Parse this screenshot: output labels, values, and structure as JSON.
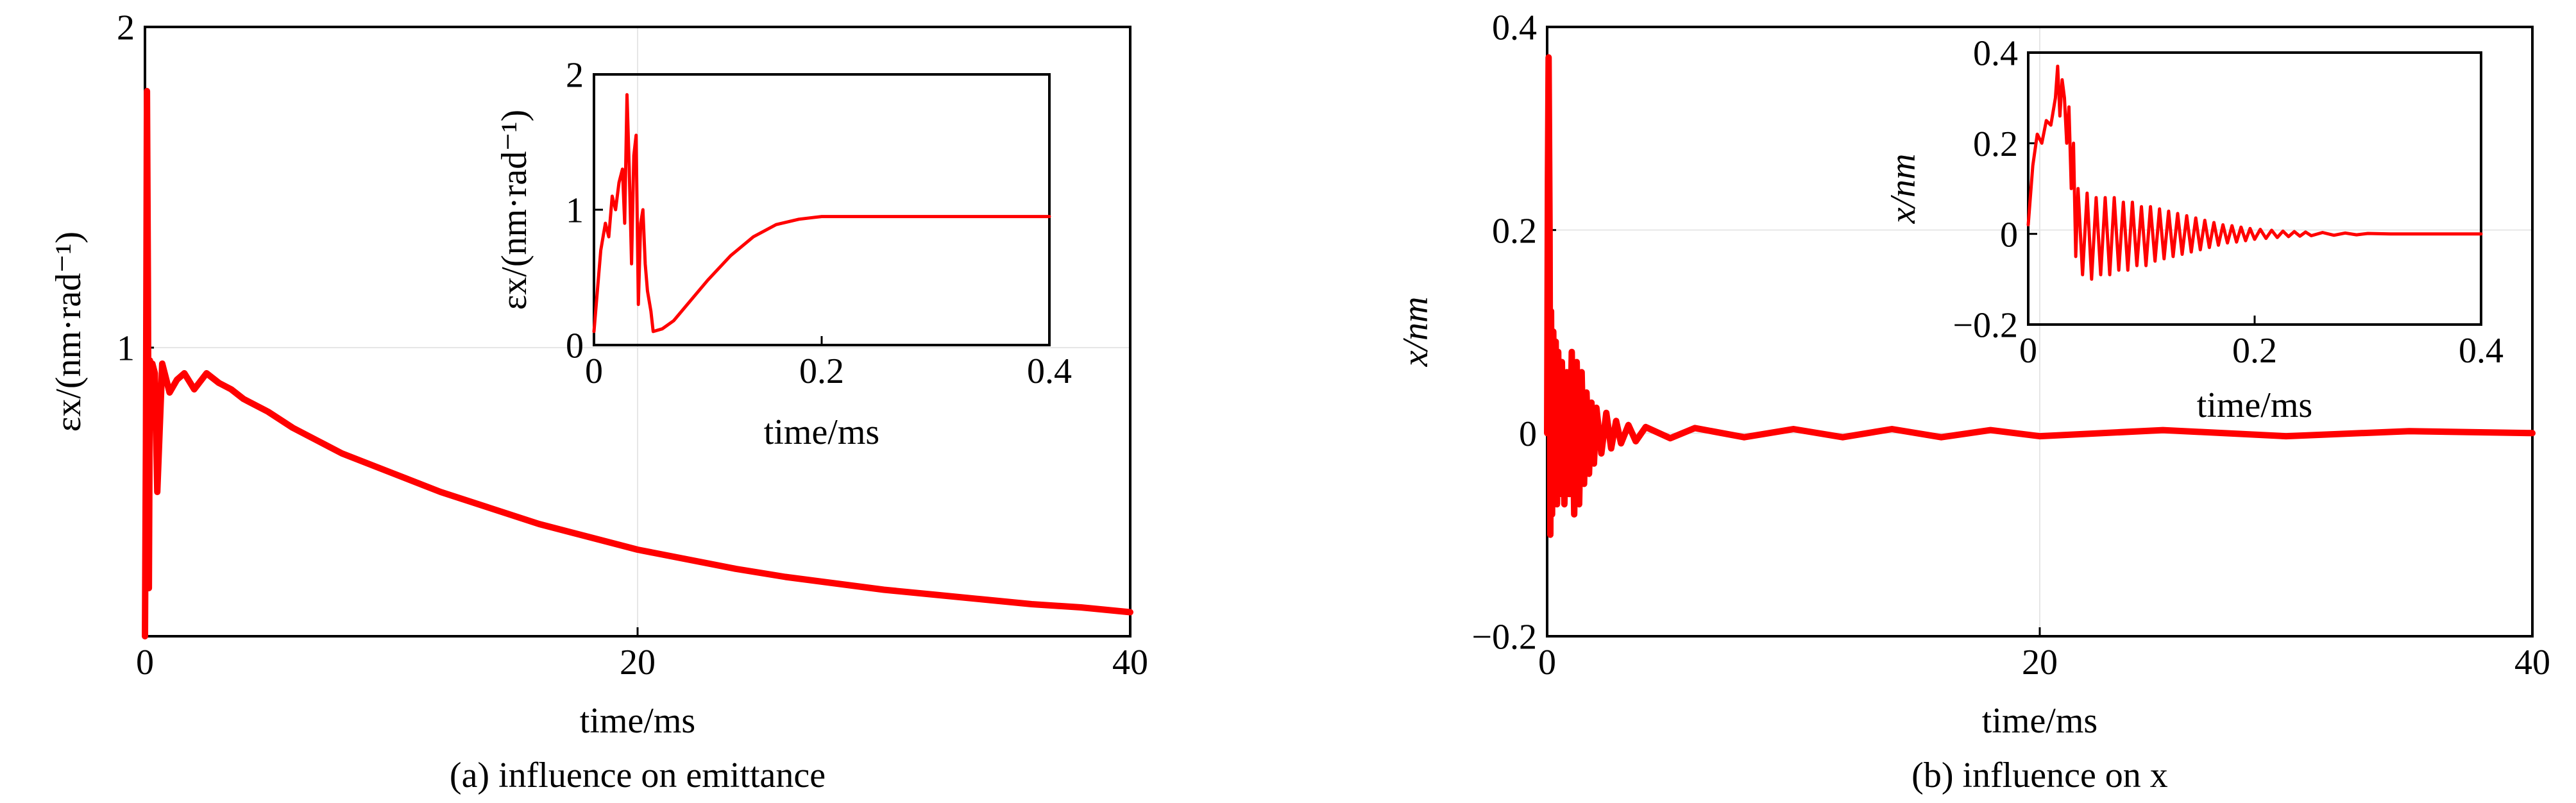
{
  "colors": {
    "series": "#ff0000",
    "axis": "#000000",
    "grid": "#e6e6e6"
  },
  "chart_data": [
    {
      "type": "line",
      "caption": "(a) influence on emittance",
      "xlabel": "time/ms",
      "ylabel": "εx/(nm·rad⁻¹)",
      "xlim": [
        0,
        40
      ],
      "ylim": [
        0.1,
        2
      ],
      "xticks": [
        0,
        20,
        40
      ],
      "yticks": [
        1,
        2
      ],
      "grid": true,
      "series": [
        {
          "x": [
            0,
            0.04,
            0.08,
            0.12,
            0.16,
            0.2,
            0.25,
            0.3,
            0.4,
            0.5,
            0.7,
            1,
            1.3,
            1.6,
            2,
            2.5,
            3,
            3.5,
            4,
            5,
            6,
            7,
            8,
            10,
            12,
            14,
            16,
            18,
            20,
            22,
            24,
            26,
            28,
            30,
            32,
            34,
            36,
            38,
            40
          ],
          "y": [
            0.1,
            0.7,
            1.8,
            1.2,
            0.25,
            0.96,
            0.8,
            0.95,
            0.92,
            0.55,
            0.95,
            0.86,
            0.9,
            0.92,
            0.87,
            0.92,
            0.89,
            0.87,
            0.84,
            0.8,
            0.75,
            0.71,
            0.67,
            0.61,
            0.55,
            0.5,
            0.45,
            0.41,
            0.37,
            0.34,
            0.31,
            0.285,
            0.265,
            0.245,
            0.23,
            0.215,
            0.2,
            0.19,
            0.175
          ]
        }
      ],
      "inset": {
        "xlabel": "time/ms",
        "ylabel": "εx/(nm·rad⁻¹)",
        "xlim": [
          0,
          0.4
        ],
        "ylim": [
          0,
          2
        ],
        "xticks": [
          0,
          0.2,
          0.4
        ],
        "yticks": [
          0,
          1,
          2
        ],
        "series": [
          {
            "x": [
              0,
              0.003,
              0.006,
              0.01,
              0.013,
              0.016,
              0.019,
              0.022,
              0.025,
              0.027,
              0.029,
              0.031,
              0.033,
              0.035,
              0.037,
              0.039,
              0.041,
              0.043,
              0.045,
              0.047,
              0.05,
              0.052,
              0.06,
              0.07,
              0.08,
              0.1,
              0.12,
              0.14,
              0.16,
              0.18,
              0.2,
              0.22,
              0.25,
              0.3,
              0.35,
              0.4
            ],
            "y": [
              0.1,
              0.4,
              0.7,
              0.9,
              0.8,
              1.1,
              1.0,
              1.2,
              1.3,
              0.9,
              1.85,
              1.3,
              0.6,
              1.4,
              1.55,
              0.3,
              0.9,
              1.0,
              0.6,
              0.4,
              0.25,
              0.1,
              0.12,
              0.18,
              0.28,
              0.48,
              0.66,
              0.8,
              0.89,
              0.93,
              0.95,
              0.95,
              0.95,
              0.95,
              0.95,
              0.95
            ]
          }
        ]
      }
    },
    {
      "type": "line",
      "caption": "(b) influence on x",
      "xlabel": "time/ms",
      "ylabel": "x/nm",
      "xlim": [
        0,
        40
      ],
      "ylim": [
        -0.2,
        0.4
      ],
      "xticks": [
        0,
        20,
        40
      ],
      "yticks": [
        -0.2,
        0,
        0.2,
        0.4
      ],
      "grid": true,
      "series": [
        {
          "x": [
            0,
            0.03,
            0.06,
            0.1,
            0.13,
            0.16,
            0.2,
            0.25,
            0.3,
            0.35,
            0.4,
            0.45,
            0.5,
            0.6,
            0.7,
            0.8,
            0.9,
            1.0,
            1.1,
            1.2,
            1.3,
            1.4,
            1.5,
            1.6,
            1.7,
            1.8,
            1.9,
            2.0,
            2.2,
            2.4,
            2.6,
            2.8,
            3.0,
            3.3,
            3.6,
            4,
            5,
            6,
            8,
            10,
            12,
            14,
            16,
            18,
            20,
            25,
            30,
            35,
            40
          ],
          "y": [
            0,
            0.25,
            0.37,
            0.2,
            -0.1,
            0.12,
            -0.08,
            0.1,
            -0.07,
            0.09,
            -0.07,
            0.08,
            -0.06,
            0.07,
            -0.07,
            0.06,
            -0.06,
            0.08,
            -0.08,
            0.07,
            -0.07,
            0.06,
            -0.05,
            0.04,
            -0.04,
            0.03,
            -0.03,
            0.025,
            -0.02,
            0.02,
            -0.015,
            0.012,
            -0.01,
            0.008,
            -0.008,
            0.006,
            -0.005,
            0.005,
            -0.004,
            0.004,
            -0.004,
            0.004,
            -0.004,
            0.003,
            -0.003,
            0.003,
            -0.003,
            0.002,
            0
          ]
        }
      ],
      "inset": {
        "xlabel": "time/ms",
        "ylabel": "x/nm",
        "xlim": [
          0,
          0.4
        ],
        "ylim": [
          -0.2,
          0.4
        ],
        "xticks": [
          0,
          0.2,
          0.4
        ],
        "yticks": [
          -0.2,
          0,
          0.2,
          0.4
        ],
        "series": [
          {
            "x": [
              0,
              0.004,
              0.008,
              0.012,
              0.016,
              0.02,
              0.024,
              0.026,
              0.028,
              0.03,
              0.032,
              0.034,
              0.036,
              0.038,
              0.04,
              0.042,
              0.044,
              0.048,
              0.052,
              0.056,
              0.06,
              0.064,
              0.068,
              0.072,
              0.076,
              0.08,
              0.084,
              0.088,
              0.092,
              0.096,
              0.1,
              0.104,
              0.108,
              0.112,
              0.116,
              0.12,
              0.124,
              0.128,
              0.132,
              0.136,
              0.14,
              0.144,
              0.148,
              0.152,
              0.156,
              0.16,
              0.164,
              0.168,
              0.172,
              0.176,
              0.18,
              0.184,
              0.188,
              0.192,
              0.196,
              0.2,
              0.205,
              0.21,
              0.215,
              0.22,
              0.225,
              0.23,
              0.235,
              0.24,
              0.245,
              0.25,
              0.26,
              0.27,
              0.28,
              0.29,
              0.3,
              0.32,
              0.35,
              0.4
            ],
            "y": [
              0.02,
              0.15,
              0.22,
              0.2,
              0.25,
              0.24,
              0.3,
              0.37,
              0.26,
              0.34,
              0.3,
              0.2,
              0.28,
              0.1,
              0.2,
              -0.05,
              0.1,
              -0.09,
              0.09,
              -0.1,
              0.08,
              -0.09,
              0.08,
              -0.09,
              0.08,
              -0.08,
              0.07,
              -0.08,
              0.07,
              -0.07,
              0.06,
              -0.07,
              0.06,
              -0.06,
              0.055,
              -0.055,
              0.05,
              -0.05,
              0.045,
              -0.045,
              0.04,
              -0.04,
              0.035,
              -0.035,
              0.03,
              -0.03,
              0.025,
              -0.025,
              0.02,
              -0.02,
              0.018,
              -0.018,
              0.015,
              -0.015,
              0.012,
              -0.012,
              0.01,
              -0.01,
              0.008,
              -0.008,
              0.006,
              -0.006,
              0.005,
              -0.005,
              0.004,
              -0.004,
              0.003,
              -0.003,
              0.002,
              -0.002,
              0.001,
              0,
              0,
              0
            ]
          }
        ]
      }
    }
  ]
}
